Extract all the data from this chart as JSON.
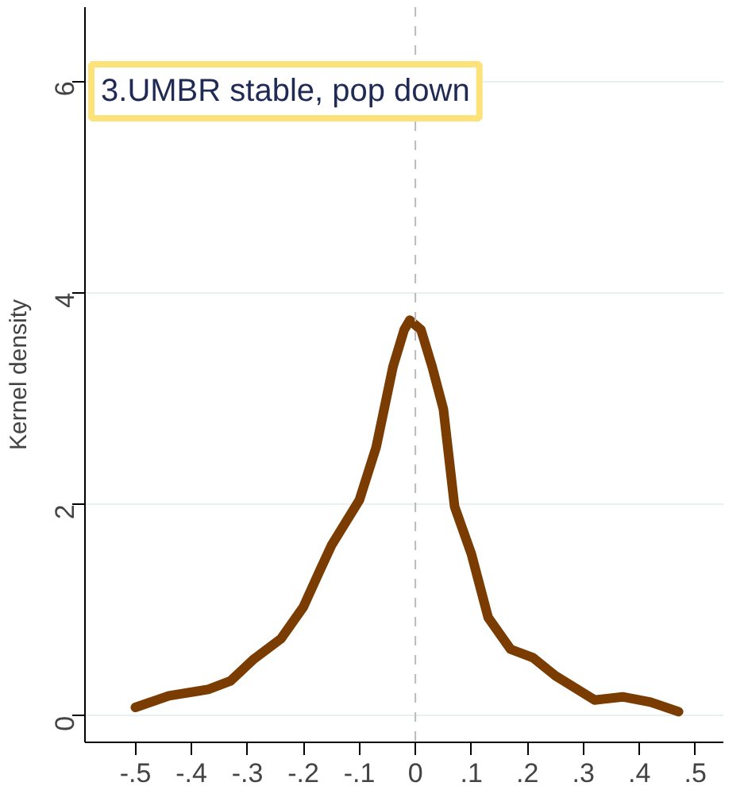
{
  "chart_data": {
    "type": "line",
    "title": "3.UMBR stable, pop down",
    "ylabel": "Kernel density",
    "x": [
      -0.5,
      -0.44,
      -0.37,
      -0.33,
      -0.29,
      -0.24,
      -0.2,
      -0.17,
      -0.15,
      -0.1,
      -0.07,
      -0.04,
      -0.02,
      -0.01,
      0.01,
      0.03,
      0.05,
      0.07,
      0.1,
      0.13,
      0.17,
      0.21,
      0.25,
      0.32,
      0.37,
      0.42,
      0.47
    ],
    "series": [
      {
        "color": "#7a3c00",
        "values": [
          0.08,
          0.19,
          0.25,
          0.33,
          0.53,
          0.73,
          1.03,
          1.38,
          1.61,
          2.04,
          2.54,
          3.3,
          3.65,
          3.74,
          3.65,
          3.3,
          2.9,
          1.98,
          1.53,
          0.93,
          0.63,
          0.55,
          0.38,
          0.15,
          0.18,
          0.13,
          0.04
        ]
      }
    ],
    "xlim": [
      -0.59,
      0.55
    ],
    "ylim": [
      -0.25,
      6.7
    ],
    "xticks": [
      {
        "value": -0.5,
        "label": "-.5"
      },
      {
        "value": -0.4,
        "label": "-.4"
      },
      {
        "value": -0.3,
        "label": "-.3"
      },
      {
        "value": -0.2,
        "label": "-.2"
      },
      {
        "value": -0.1,
        "label": "-.1"
      },
      0,
      {
        "value": 0.1,
        "label": ".1"
      },
      {
        "value": 0.2,
        "label": ".2"
      },
      {
        "value": 0.3,
        "label": ".3"
      },
      {
        "value": 0.4,
        "label": ".4"
      },
      {
        "value": 0.5,
        "label": ".5"
      }
    ],
    "yticks": [
      0,
      2,
      4,
      6
    ],
    "grid": "y",
    "line_style": "solid",
    "marker": "none",
    "ref_lines": [
      {
        "axis": "x",
        "value": 0,
        "color": "#bbbbbb",
        "line_style": "dashed"
      }
    ]
  }
}
